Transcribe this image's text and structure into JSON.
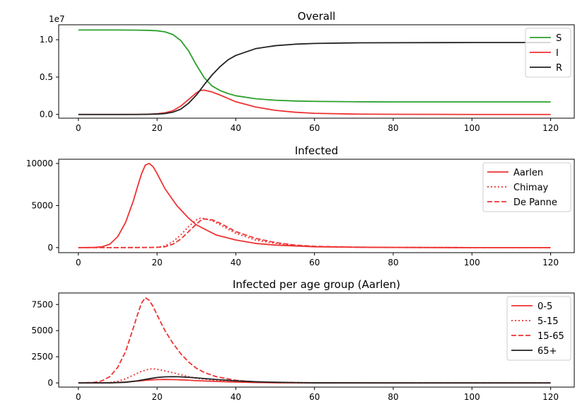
{
  "chart_data": [
    {
      "type": "line",
      "title": "Overall",
      "xlabel": "",
      "ylabel": "",
      "xlim": [
        -5,
        126
      ],
      "ylim": [
        -500000,
        12000000
      ],
      "xticks": [
        0,
        20,
        40,
        60,
        80,
        100,
        120
      ],
      "xtick_labels": [
        "0",
        "20",
        "40",
        "60",
        "80",
        "100",
        "120"
      ],
      "yticks": [
        0,
        5000000,
        10000000
      ],
      "ytick_labels": [
        "0.0",
        "0.5",
        "1.0"
      ],
      "offset_text": "1e7",
      "grid": false,
      "legend_position": "top-right",
      "series": [
        {
          "name": "S",
          "color": "#2ca02c",
          "dash": "solid",
          "x": [
            0,
            5,
            10,
            15,
            18,
            20,
            22,
            24,
            26,
            28,
            30,
            32,
            34,
            36,
            38,
            40,
            45,
            50,
            55,
            60,
            70,
            80,
            100,
            120
          ],
          "y": [
            11300000,
            11300000,
            11300000,
            11280000,
            11250000,
            11200000,
            11050000,
            10700000,
            9900000,
            8500000,
            6600000,
            4900000,
            3800000,
            3200000,
            2800000,
            2500000,
            2100000,
            1900000,
            1800000,
            1750000,
            1700000,
            1680000,
            1680000,
            1680000
          ]
        },
        {
          "name": "I",
          "color": "#ee3333",
          "dash": "solid",
          "x": [
            0,
            10,
            15,
            18,
            20,
            22,
            24,
            26,
            28,
            30,
            31,
            32,
            34,
            36,
            38,
            40,
            45,
            50,
            55,
            60,
            70,
            80,
            100,
            120
          ],
          "y": [
            0,
            0,
            10000,
            40000,
            90000,
            220000,
            500000,
            1100000,
            2000000,
            2900000,
            3200000,
            3250000,
            3000000,
            2600000,
            2150000,
            1700000,
            1000000,
            550000,
            300000,
            150000,
            50000,
            20000,
            0,
            0
          ]
        },
        {
          "name": "R",
          "color": "#222222",
          "dash": "solid",
          "x": [
            0,
            10,
            15,
            18,
            20,
            22,
            24,
            26,
            28,
            30,
            32,
            34,
            36,
            38,
            40,
            45,
            50,
            55,
            60,
            70,
            80,
            100,
            120
          ],
          "y": [
            0,
            0,
            0,
            20000,
            50000,
            120000,
            300000,
            700000,
            1500000,
            2600000,
            4000000,
            5300000,
            6400000,
            7300000,
            7900000,
            8800000,
            9200000,
            9400000,
            9500000,
            9580000,
            9600000,
            9620000,
            9620000
          ]
        }
      ]
    },
    {
      "type": "line",
      "title": "Infected",
      "xlabel": "",
      "ylabel": "",
      "xlim": [
        -5,
        126
      ],
      "ylim": [
        -600,
        10500
      ],
      "xticks": [
        0,
        20,
        40,
        60,
        80,
        100,
        120
      ],
      "xtick_labels": [
        "0",
        "20",
        "40",
        "60",
        "80",
        "100",
        "120"
      ],
      "yticks": [
        0,
        5000,
        10000
      ],
      "ytick_labels": [
        "0",
        "5000",
        "10000"
      ],
      "grid": false,
      "legend_position": "top-right",
      "series": [
        {
          "name": "Aarlen",
          "color": "#ee3333",
          "dash": "solid",
          "x": [
            0,
            4,
            6,
            8,
            10,
            12,
            14,
            15,
            16,
            17,
            18,
            19,
            20,
            22,
            25,
            28,
            30,
            35,
            40,
            45,
            50,
            60,
            70,
            80,
            100,
            120
          ],
          "y": [
            0,
            20,
            100,
            400,
            1300,
            3000,
            5600,
            7200,
            8700,
            9800,
            10000,
            9600,
            8800,
            7000,
            5000,
            3500,
            2700,
            1500,
            900,
            500,
            300,
            100,
            50,
            20,
            0,
            0
          ]
        },
        {
          "name": "Chimay",
          "color": "#ee3333",
          "dash": "dotted",
          "x": [
            0,
            10,
            18,
            20,
            22,
            24,
            26,
            28,
            30,
            31,
            32,
            34,
            36,
            38,
            40,
            45,
            50,
            55,
            60,
            70,
            80,
            100,
            120
          ],
          "y": [
            0,
            0,
            20,
            50,
            200,
            700,
            1500,
            2500,
            3300,
            3500,
            3450,
            3200,
            2700,
            2200,
            1700,
            900,
            500,
            250,
            120,
            40,
            10,
            0,
            0
          ]
        },
        {
          "name": "De Panne",
          "color": "#ee3333",
          "dash": "dashed",
          "x": [
            0,
            10,
            18,
            20,
            22,
            24,
            26,
            28,
            30,
            31,
            32,
            34,
            36,
            38,
            40,
            45,
            50,
            55,
            60,
            70,
            80,
            100,
            120
          ],
          "y": [
            0,
            0,
            10,
            30,
            100,
            400,
            1000,
            1900,
            2800,
            3200,
            3400,
            3300,
            2900,
            2400,
            1900,
            1100,
            600,
            300,
            150,
            50,
            20,
            0,
            0
          ]
        }
      ]
    },
    {
      "type": "line",
      "title": "Infected per age group (Aarlen)",
      "xlabel": "",
      "ylabel": "",
      "xlim": [
        -5,
        126
      ],
      "ylim": [
        -400,
        8600
      ],
      "xticks": [
        0,
        20,
        40,
        60,
        80,
        100,
        120
      ],
      "xtick_labels": [
        "0",
        "20",
        "40",
        "60",
        "80",
        "100",
        "120"
      ],
      "yticks": [
        0,
        2500,
        5000,
        7500
      ],
      "ytick_labels": [
        "0",
        "2500",
        "5000",
        "7500"
      ],
      "grid": false,
      "legend_position": "top-right",
      "series": [
        {
          "name": "0-5",
          "color": "#ee3333",
          "dash": "solid",
          "x": [
            0,
            8,
            12,
            15,
            18,
            20,
            22,
            25,
            28,
            30,
            35,
            40,
            45,
            50,
            60,
            80,
            100,
            120
          ],
          "y": [
            0,
            10,
            80,
            180,
            280,
            320,
            330,
            310,
            260,
            220,
            140,
            80,
            40,
            20,
            5,
            0,
            0,
            0
          ]
        },
        {
          "name": "5-15",
          "color": "#ee3333",
          "dash": "dotted",
          "x": [
            0,
            6,
            8,
            10,
            12,
            14,
            16,
            18,
            19,
            20,
            22,
            25,
            28,
            30,
            35,
            40,
            45,
            50,
            60,
            80,
            100,
            120
          ],
          "y": [
            0,
            10,
            40,
            150,
            400,
            750,
            1100,
            1320,
            1350,
            1300,
            1150,
            880,
            600,
            450,
            220,
            100,
            40,
            20,
            0,
            0,
            0,
            0
          ]
        },
        {
          "name": "15-65",
          "color": "#ee3333",
          "dash": "dashed",
          "x": [
            0,
            4,
            6,
            8,
            10,
            12,
            14,
            15,
            16,
            17,
            18,
            19,
            20,
            22,
            24,
            26,
            28,
            30,
            32,
            35,
            40,
            45,
            50,
            60,
            70,
            80,
            100,
            120
          ],
          "y": [
            0,
            50,
            200,
            600,
            1500,
            3000,
            5300,
            6500,
            7600,
            8150,
            7900,
            7300,
            6500,
            5000,
            3800,
            2800,
            2000,
            1400,
            1000,
            600,
            250,
            100,
            50,
            10,
            0,
            0,
            0,
            0
          ]
        },
        {
          "name": "65+",
          "color": "#222222",
          "dash": "solid",
          "x": [
            0,
            8,
            12,
            15,
            18,
            20,
            22,
            24,
            26,
            28,
            30,
            35,
            40,
            45,
            50,
            55,
            60,
            80,
            100,
            120
          ],
          "y": [
            0,
            10,
            60,
            200,
            400,
            520,
            580,
            600,
            580,
            540,
            480,
            330,
            200,
            110,
            60,
            30,
            10,
            0,
            0,
            0
          ]
        }
      ]
    }
  ]
}
